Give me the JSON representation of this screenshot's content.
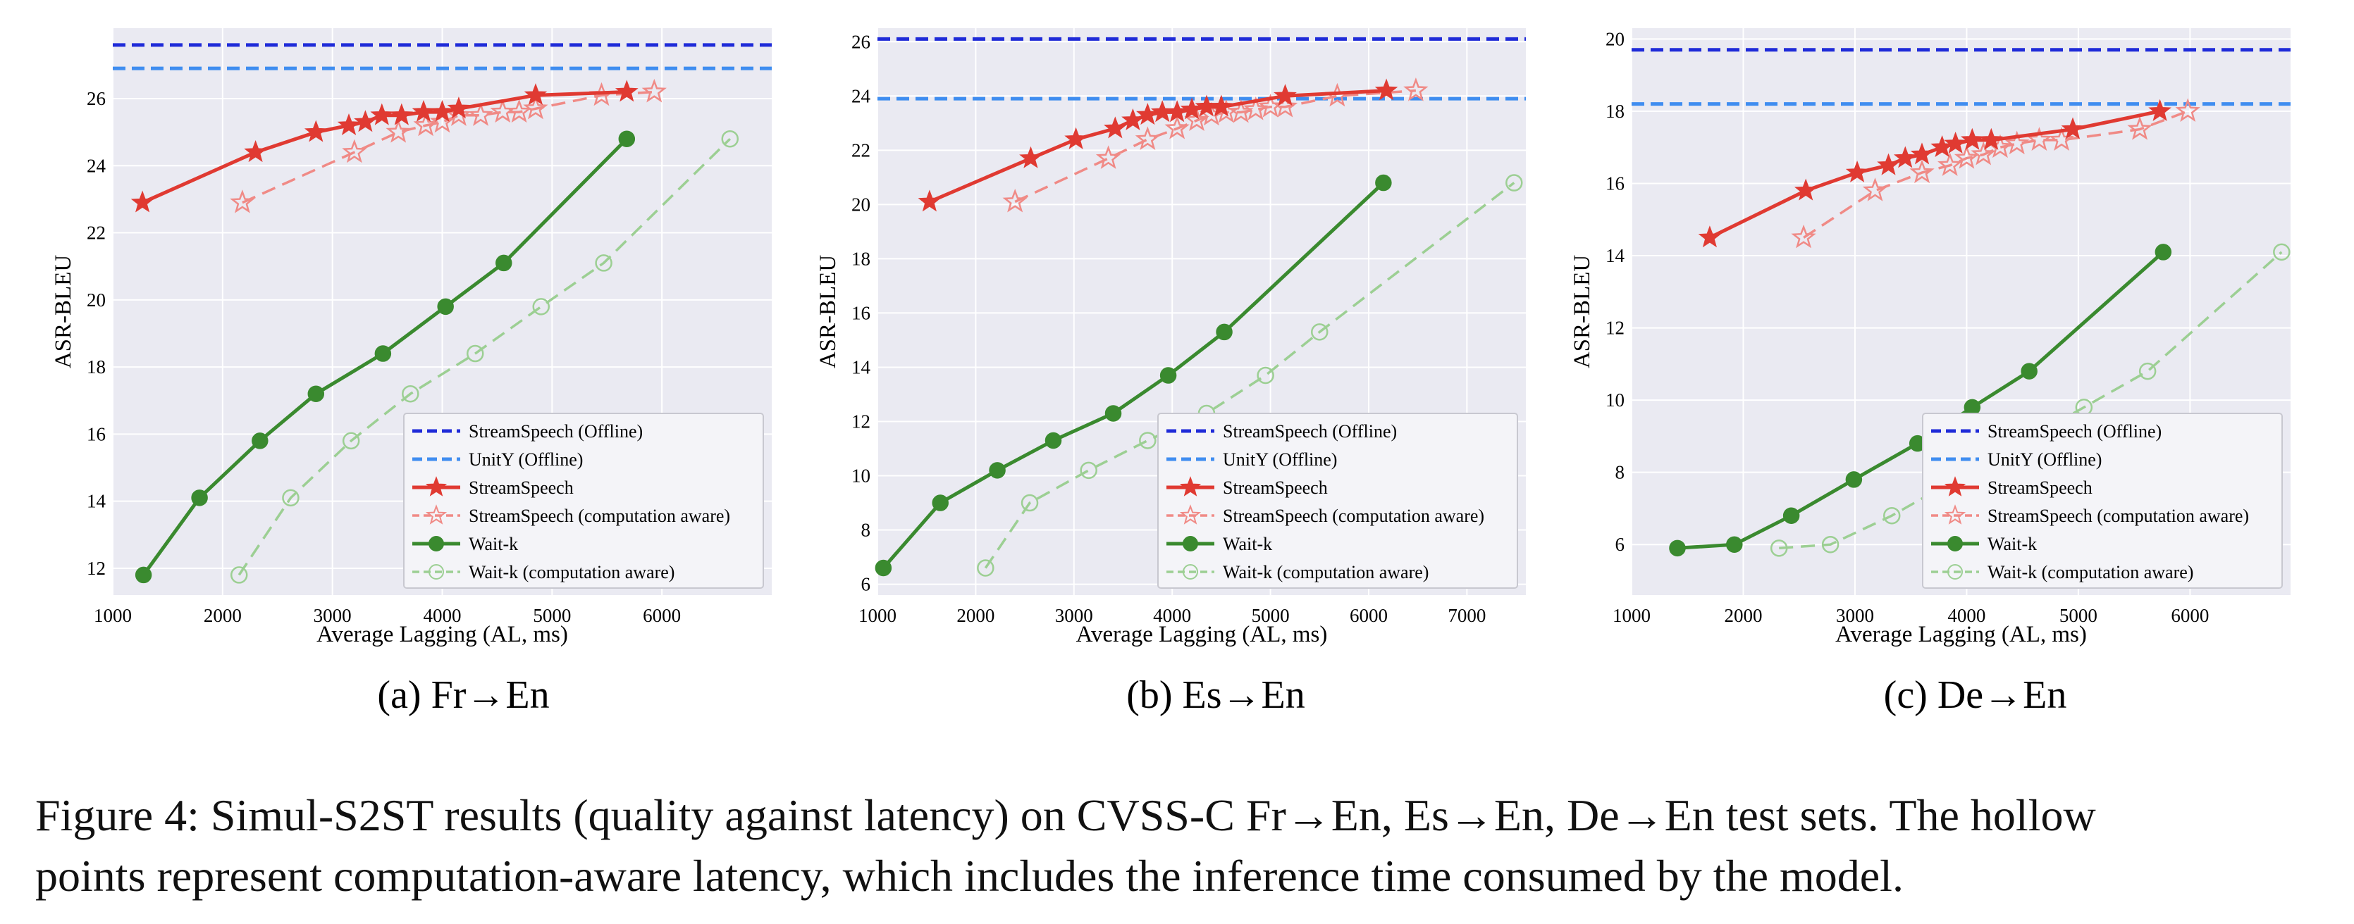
{
  "figure": {
    "caption_line1": "Figure 4: Simul-S2ST results (quality against latency) on CVSS-C Fr→En, Es→En, De→En test sets. The hollow",
    "caption_line2": "points represent computation-aware latency, which includes the inference time consumed by the model."
  },
  "colors": {
    "streamspeech_offline": "#1f2bd8",
    "unity_offline": "#3f8df0",
    "streamspeech": "#e03a32",
    "streamspeech_ca": "#f08a86",
    "waitk": "#3a8a2f",
    "waitk_ca": "#9ccf93",
    "plot_bg": "#eaeaf2",
    "grid": "#ffffff"
  },
  "chart_data": [
    {
      "type": "line",
      "caption": "(a) Fr→En",
      "xlabel": "Average Lagging (AL, ms)",
      "ylabel": "ASR-BLEU",
      "xlim": [
        1000,
        7000
      ],
      "ylim": [
        11.2,
        28.1
      ],
      "xticks": [
        1000,
        2000,
        3000,
        4000,
        5000,
        6000
      ],
      "yticks": [
        12,
        14,
        16,
        18,
        20,
        22,
        24,
        26
      ],
      "grid": true,
      "legend_position": "bottom-right",
      "hlines": [
        {
          "name": "StreamSpeech (Offline)",
          "y": 27.6
        },
        {
          "name": "UnitY (Offline)",
          "y": 26.9
        }
      ],
      "series": [
        {
          "name": "StreamSpeech",
          "x": [
            1270,
            2300,
            2850,
            3150,
            3300,
            3450,
            3630,
            3830,
            4000,
            4150,
            4850,
            5680
          ],
          "y": [
            22.9,
            24.4,
            25.0,
            25.2,
            25.3,
            25.5,
            25.5,
            25.6,
            25.6,
            25.7,
            26.1,
            26.2
          ]
        },
        {
          "name": "StreamSpeech (computation aware)",
          "x": [
            2180,
            3200,
            3600,
            3850,
            4000,
            4150,
            4350,
            4550,
            4700,
            4850,
            5450,
            5930
          ],
          "y": [
            22.9,
            24.4,
            25.0,
            25.2,
            25.3,
            25.5,
            25.5,
            25.6,
            25.6,
            25.7,
            26.1,
            26.2
          ]
        },
        {
          "name": "Wait-k",
          "x": [
            1280,
            1790,
            2340,
            2850,
            3460,
            4030,
            4560,
            5680
          ],
          "y": [
            11.8,
            14.1,
            15.8,
            17.2,
            18.4,
            19.8,
            21.1,
            24.8
          ]
        },
        {
          "name": "Wait-k (computation aware)",
          "x": [
            2150,
            2620,
            3170,
            3710,
            4300,
            4900,
            5470,
            6620
          ],
          "y": [
            11.8,
            14.1,
            15.8,
            17.2,
            18.4,
            19.8,
            21.1,
            24.8
          ]
        }
      ]
    },
    {
      "type": "line",
      "caption": "(b) Es→En",
      "xlabel": "Average Lagging (AL, ms)",
      "ylabel": "ASR-BLEU",
      "xlim": [
        1000,
        7600
      ],
      "ylim": [
        5.6,
        26.5
      ],
      "xticks": [
        1000,
        2000,
        3000,
        4000,
        5000,
        6000,
        7000
      ],
      "yticks": [
        6,
        8,
        10,
        12,
        14,
        16,
        18,
        20,
        22,
        24,
        26
      ],
      "grid": true,
      "legend_position": "bottom-right",
      "hlines": [
        {
          "name": "StreamSpeech (Offline)",
          "y": 26.1
        },
        {
          "name": "UnitY (Offline)",
          "y": 23.9
        }
      ],
      "series": [
        {
          "name": "StreamSpeech",
          "x": [
            1530,
            2560,
            3020,
            3420,
            3600,
            3750,
            3900,
            4050,
            4200,
            4350,
            4500,
            5150,
            6180
          ],
          "y": [
            20.1,
            21.7,
            22.4,
            22.8,
            23.1,
            23.3,
            23.4,
            23.4,
            23.5,
            23.6,
            23.6,
            24.0,
            24.2
          ]
        },
        {
          "name": "StreamSpeech (computation aware)",
          "x": [
            2400,
            3350,
            3750,
            4050,
            4250,
            4400,
            4550,
            4700,
            4850,
            5000,
            5150,
            5680,
            6480
          ],
          "y": [
            20.1,
            21.7,
            22.4,
            22.8,
            23.1,
            23.3,
            23.4,
            23.4,
            23.5,
            23.6,
            23.6,
            24.0,
            24.2
          ]
        },
        {
          "name": "Wait-k",
          "x": [
            1060,
            1640,
            2220,
            2790,
            3400,
            3960,
            4530,
            6150
          ],
          "y": [
            6.6,
            9.0,
            10.2,
            11.3,
            12.3,
            13.7,
            15.3,
            20.8
          ]
        },
        {
          "name": "Wait-k (computation aware)",
          "x": [
            2100,
            2550,
            3150,
            3750,
            4350,
            4950,
            5500,
            7480
          ],
          "y": [
            6.6,
            9.0,
            10.2,
            11.3,
            12.3,
            13.7,
            15.3,
            20.8
          ]
        }
      ]
    },
    {
      "type": "line",
      "caption": "(c) De→En",
      "xlabel": "Average Lagging (AL, ms)",
      "ylabel": "ASR-BLEU",
      "xlim": [
        1000,
        6900
      ],
      "ylim": [
        4.6,
        20.3
      ],
      "xticks": [
        1000,
        2000,
        3000,
        4000,
        5000,
        6000
      ],
      "yticks": [
        6,
        8,
        10,
        12,
        14,
        16,
        18,
        20
      ],
      "grid": true,
      "legend_position": "bottom-right",
      "hlines": [
        {
          "name": "StreamSpeech (Offline)",
          "y": 19.7
        },
        {
          "name": "UnitY (Offline)",
          "y": 18.2
        }
      ],
      "series": [
        {
          "name": "StreamSpeech",
          "x": [
            1700,
            2560,
            3020,
            3300,
            3450,
            3600,
            3780,
            3900,
            4050,
            4220,
            4950,
            5730
          ],
          "y": [
            14.5,
            15.8,
            16.3,
            16.5,
            16.7,
            16.8,
            17.0,
            17.1,
            17.2,
            17.2,
            17.5,
            18.0
          ]
        },
        {
          "name": "StreamSpeech (computation aware)",
          "x": [
            2540,
            3180,
            3600,
            3850,
            4000,
            4150,
            4300,
            4450,
            4650,
            4850,
            5550,
            5980
          ],
          "y": [
            14.5,
            15.8,
            16.3,
            16.5,
            16.7,
            16.8,
            17.0,
            17.1,
            17.2,
            17.2,
            17.5,
            18.0
          ]
        },
        {
          "name": "Wait-k",
          "x": [
            1410,
            1920,
            2430,
            2990,
            3560,
            4050,
            4560,
            5760
          ],
          "y": [
            5.9,
            6.0,
            6.8,
            7.8,
            8.8,
            9.8,
            10.8,
            14.1
          ]
        },
        {
          "name": "Wait-k (computation aware)",
          "x": [
            2320,
            2780,
            3330,
            3900,
            4480,
            5050,
            5620,
            6820
          ],
          "y": [
            5.9,
            6.0,
            6.8,
            7.8,
            8.8,
            9.8,
            10.8,
            14.1
          ]
        }
      ]
    }
  ]
}
